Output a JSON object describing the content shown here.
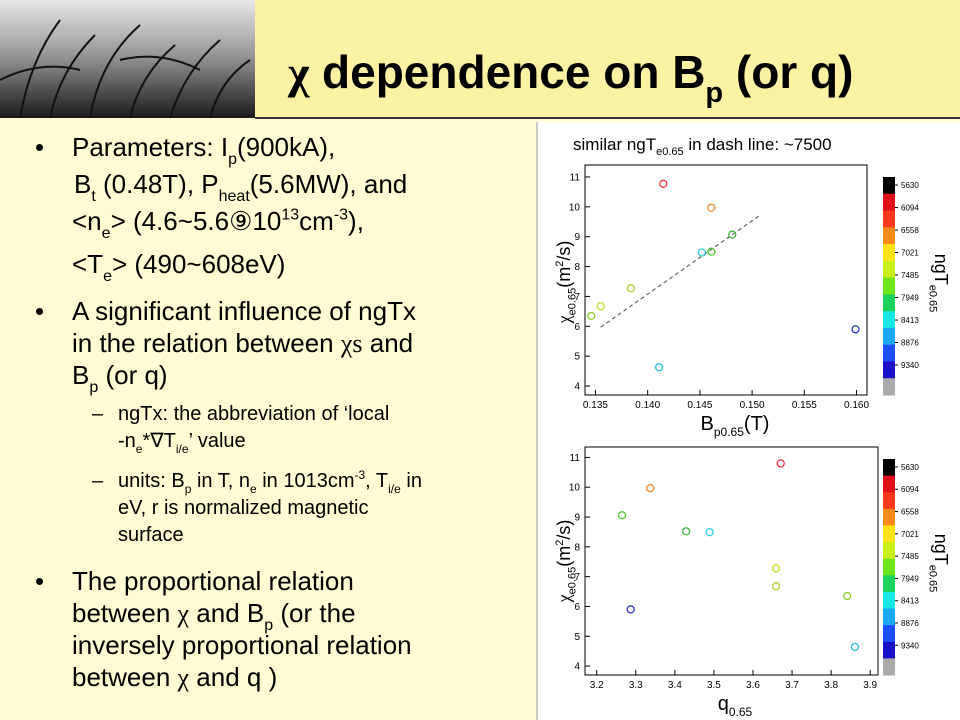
{
  "title": [
    "χ",
    " dependence on B",
    "p",
    " (or q)"
  ],
  "body": [
    {
      "marker": "•",
      "lines": [
        [
          "Parameters: I",
          "p",
          "(900kA),"
        ],
        [
          "B",
          "t",
          " (0.48T), P",
          "heat",
          "(5.6MW), and"
        ],
        [
          "<n",
          "e",
          "> (4.6~5.6",
          "⑨",
          "10",
          "13",
          "cm",
          "-3",
          "),"
        ],
        [
          "<T",
          "e",
          "> (490~608eV)"
        ]
      ]
    },
    {
      "marker": "•",
      "lines": [
        [
          "A significant influence of ngTx"
        ],
        [
          "in the relation between ",
          "χs",
          " and"
        ],
        [
          "B",
          "p",
          " (or q)"
        ]
      ]
    },
    {
      "marker": "–",
      "lines": [
        [
          "ngTx: the abbreviation of ‘local"
        ],
        [
          "-n",
          "e",
          "*",
          "∇",
          "T",
          "i/e",
          "’ value"
        ]
      ]
    },
    {
      "marker": "–",
      "lines": [
        [
          "units: B",
          "p",
          " in T, n",
          "e",
          " in 10",
          "13",
          "cm",
          "-3",
          ", T",
          "i/e",
          " in"
        ],
        [
          "eV, r is normalized magnetic"
        ],
        [
          "surface"
        ]
      ]
    },
    {
      "marker": "•",
      "lines": [
        [
          "The proportional relation"
        ],
        [
          "between ",
          "χ",
          " and B",
          "p",
          " (or the"
        ],
        [
          "inversely proportional relation"
        ],
        [
          "between ",
          "χ",
          " and q )"
        ]
      ]
    }
  ],
  "chart_data": [
    {
      "type": "scatter",
      "title": [
        "similar ngT",
        "e0.65",
        " in dash line: ~7500"
      ],
      "x_label": [
        "B",
        "p0.65",
        "(T)"
      ],
      "y_label": [
        "χ",
        "e0.65",
        "(m",
        "2",
        "/s)"
      ],
      "x": [
        0.1346,
        0.1355,
        0.1384,
        0.1411,
        0.1415,
        0.1461,
        0.1452,
        0.1461,
        0.1481,
        0.1599
      ],
      "values": [
        6.35,
        6.67,
        7.27,
        4.63,
        10.77,
        9.97,
        8.47,
        8.5,
        9.07,
        5.9
      ],
      "point_colors": [
        "#8fcf2a",
        "#c3d82a",
        "#a8d42a",
        "#27b8e0",
        "#e8343a",
        "#f28a30",
        "#2ccfd8",
        "#4fc42a",
        "#3cb43a",
        "#2a35c8"
      ],
      "dash_line": {
        "x": [
          0.1355,
          0.1508
        ],
        "y": [
          5.97,
          9.73
        ]
      },
      "xlim": [
        0.134,
        0.161
      ],
      "ylim": [
        3.7,
        11.4
      ],
      "xticks": [
        0.135,
        {
          "value": 0.14,
          "label": "0.140"
        },
        0.145,
        {
          "value": 0.15,
          "label": "0.150"
        },
        0.155,
        {
          "value": 0.16,
          "label": "0.160"
        }
      ],
      "yticks": [
        4,
        5,
        6,
        7,
        8,
        9,
        10,
        11
      ],
      "colorbar": {
        "label": [
          "ngT",
          "e0.65"
        ],
        "clim": [
          5465,
          9958
        ],
        "ticks": [
          5630,
          6094,
          6558,
          7021,
          7485,
          7949,
          8413,
          8876,
          9340
        ],
        "colors": [
          "#000000",
          "#e0101a",
          "#ff3a1a",
          "#ff8a1a",
          "#ffe31a",
          "#c8f01a",
          "#6ce61a",
          "#1ad25a",
          "#1ae6e6",
          "#1aa8ff",
          "#1a50ff",
          "#1a10c8",
          "#aaaaaa"
        ]
      }
    },
    {
      "type": "scatter",
      "x_label": [
        "q",
        "0.65"
      ],
      "y_label": [
        "χ",
        "e0.65",
        "(m",
        "2",
        "/s)"
      ],
      "x": [
        3.265,
        3.337,
        3.287,
        3.429,
        3.489,
        3.671,
        3.659,
        3.659,
        3.841,
        3.861
      ],
      "values": [
        9.06,
        9.97,
        5.9,
        8.52,
        8.49,
        10.8,
        7.28,
        6.68,
        6.35,
        4.64
      ],
      "point_colors": [
        "#4fc42a",
        "#f28a30",
        "#2a35c8",
        "#3cb43a",
        "#2ccfd8",
        "#e8343a",
        "#c3d82a",
        "#a8d42a",
        "#8fcf2a",
        "#27b8e0"
      ],
      "xlim": [
        3.17,
        3.92
      ],
      "ylim": [
        3.7,
        11.35
      ],
      "xticks": [
        3.2,
        3.3,
        3.4,
        3.5,
        3.6,
        3.7,
        3.8,
        3.9
      ],
      "yticks": [
        4,
        5,
        6,
        7,
        8,
        9,
        10,
        11
      ],
      "colorbar": {
        "label": [
          "ngT",
          "e0.65"
        ],
        "clim": [
          5465,
          9958
        ],
        "ticks": [
          5630,
          6094,
          6558,
          7021,
          7485,
          7949,
          8413,
          8876,
          9340
        ],
        "colors": [
          "#000000",
          "#e0101a",
          "#ff3a1a",
          "#ff8a1a",
          "#ffe31a",
          "#c8f01a",
          "#6ce61a",
          "#1ad25a",
          "#1ae6e6",
          "#1aa8ff",
          "#1a50ff",
          "#1a10c8",
          "#aaaaaa"
        ]
      }
    }
  ]
}
